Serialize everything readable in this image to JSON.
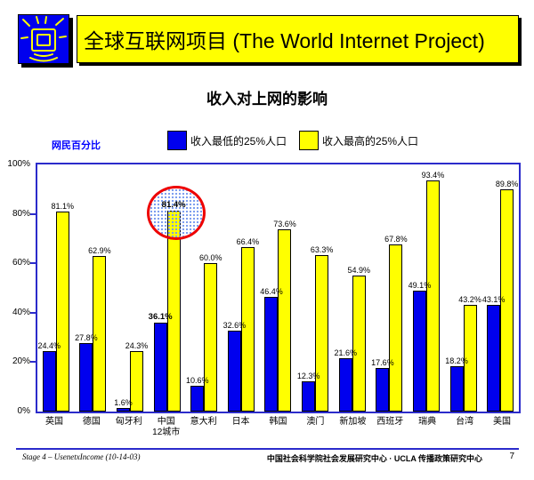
{
  "header": {
    "title": "全球互联网项目 (The World Internet Project)",
    "banner_color": "#FFFF00",
    "logo_color": "#0000EE",
    "logo_icon": "shining-monitor-icon"
  },
  "title": "收入对上网的影响",
  "chart_data": {
    "type": "bar",
    "title": "收入对上网的影响",
    "y_axis_title": "网民百分比",
    "ylim": [
      0,
      100
    ],
    "y_tick_step": 20,
    "y_tick_suffix": "%",
    "grid": false,
    "legend_position": "top",
    "categories": [
      "英国",
      "德国",
      "匈牙利",
      "中国\n12城市",
      "意大利",
      "日本",
      "韩国",
      "澳门",
      "新加坡",
      "西班牙",
      "瑞典",
      "台湾",
      "美国"
    ],
    "series": [
      {
        "name": "收入最低的25%人口",
        "color": "#0000EE",
        "values": [
          24.4,
          27.8,
          1.6,
          36.1,
          10.6,
          32.6,
          46.4,
          12.3,
          21.6,
          17.6,
          49.1,
          18.2,
          43.1
        ]
      },
      {
        "name": "收入最高的25%人口",
        "color": "#FFFF00",
        "values": [
          81.1,
          62.9,
          24.3,
          81.4,
          60.0,
          66.4,
          73.6,
          63.3,
          54.9,
          67.8,
          93.4,
          43.2,
          89.8
        ]
      }
    ],
    "value_label_suffix": "%",
    "emphasis_category_index": 3,
    "annotation": {
      "type": "circle",
      "category_index": 3,
      "series_index": 1,
      "color": "#EE0000",
      "fill": "blue-dot-pattern"
    },
    "frame_color": "#2B2BCB"
  },
  "footer": {
    "left": "Stage 4 – UsenetxIncome (10-14-03)",
    "right": "中国社会科学院社会发展研究中心 · UCLA 传播政策研究中心",
    "page": "7"
  }
}
